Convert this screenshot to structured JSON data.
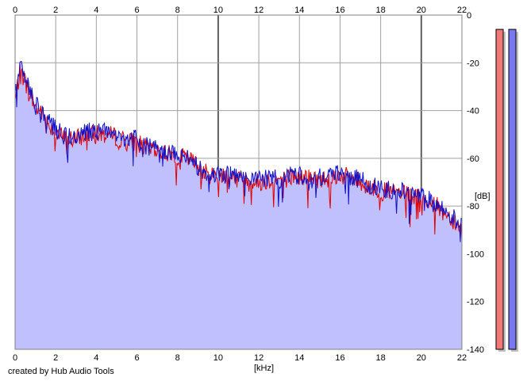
{
  "credit": "created by Hub Audio Tools",
  "chart_data": {
    "type": "line",
    "title": "",
    "xlabel": "[kHz]",
    "ylabel": "[dB]",
    "xlim": [
      0,
      22
    ],
    "ylim": [
      -140,
      0
    ],
    "x_ticks": [
      0,
      2,
      4,
      6,
      8,
      10,
      12,
      14,
      16,
      18,
      20,
      22
    ],
    "y_ticks": [
      0,
      -20,
      -40,
      -60,
      -80,
      -100,
      -120,
      -140
    ],
    "grid": true,
    "colors": {
      "left": "#e00000",
      "right": "#1010c8",
      "fill": "#c0c0ff",
      "meter_left": "#f07878",
      "meter_right": "#7878f0"
    },
    "series": [
      {
        "channel": "left",
        "x": [
          0,
          0.25,
          0.5,
          0.75,
          1,
          1.25,
          1.5,
          2,
          2.5,
          3,
          3.5,
          4,
          4.5,
          5,
          5.5,
          6,
          6.5,
          7,
          7.5,
          8,
          8.5,
          9,
          9.5,
          10,
          10.5,
          11,
          11.5,
          12,
          12.5,
          13,
          13.5,
          14,
          14.5,
          15,
          15.5,
          16,
          16.5,
          17,
          17.5,
          18,
          18.5,
          19,
          19.5,
          20,
          20.5,
          21,
          21.5,
          22
        ],
        "y": [
          -36,
          -23,
          -28,
          -33,
          -39,
          -40,
          -44,
          -49,
          -52,
          -52,
          -50,
          -50,
          -50,
          -51,
          -53,
          -53,
          -56,
          -57,
          -58,
          -59,
          -60,
          -63,
          -67,
          -67,
          -67,
          -68,
          -70,
          -70,
          -69,
          -69,
          -68,
          -68,
          -68,
          -69,
          -68,
          -67,
          -68,
          -70,
          -72,
          -74,
          -74,
          -75,
          -76,
          -77,
          -78,
          -82,
          -85,
          -90
        ]
      },
      {
        "channel": "right",
        "x": [
          0,
          0.25,
          0.5,
          0.75,
          1,
          1.25,
          1.5,
          2,
          2.5,
          3,
          3.5,
          4,
          4.5,
          5,
          5.5,
          6,
          6.5,
          7,
          7.5,
          8,
          8.5,
          9,
          9.5,
          10,
          10.5,
          11,
          11.5,
          12,
          12.5,
          13,
          13.5,
          14,
          14.5,
          15,
          15.5,
          16,
          16.5,
          17,
          17.5,
          18,
          18.5,
          19,
          19.5,
          20,
          20.5,
          21,
          21.5,
          22
        ],
        "y": [
          -34,
          -20,
          -26,
          -32,
          -38,
          -39,
          -43,
          -48,
          -51,
          -51,
          -49,
          -49,
          -49,
          -50,
          -52,
          -52,
          -55,
          -56,
          -57,
          -58,
          -60,
          -64,
          -67,
          -66,
          -67,
          -68,
          -69,
          -69,
          -68,
          -69,
          -67,
          -67,
          -67,
          -68,
          -67,
          -66,
          -68,
          -69,
          -71,
          -73,
          -73,
          -74,
          -75,
          -76,
          -78,
          -81,
          -84,
          -89
        ]
      }
    ]
  },
  "meters": [
    {
      "channel": "left",
      "level_db": -6
    },
    {
      "channel": "right",
      "level_db": -6
    }
  ]
}
